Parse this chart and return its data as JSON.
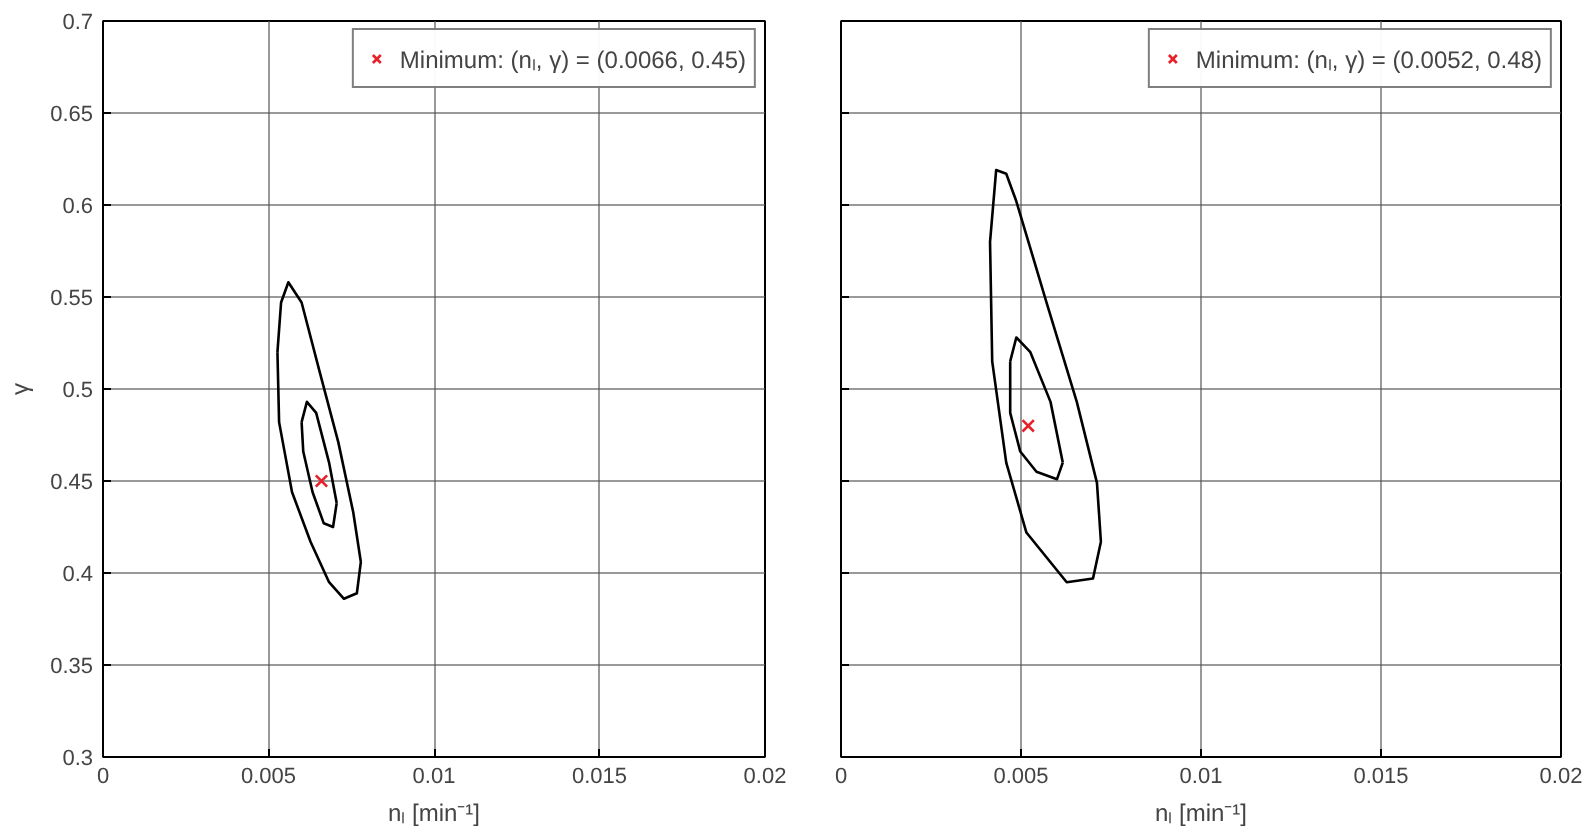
{
  "chart_data": [
    {
      "type": "line",
      "xlabel": "nₗ [min⁻¹]",
      "ylabel": "γ",
      "xlim": [
        0,
        0.02
      ],
      "ylim": [
        0.3,
        0.7
      ],
      "xticks": [
        0,
        0.005,
        0.01,
        0.015,
        0.02
      ],
      "yticks": [
        0.3,
        0.35,
        0.4,
        0.45,
        0.5,
        0.55,
        0.6,
        0.65,
        0.7
      ],
      "grid": true,
      "legend": "top right",
      "series": [
        {
          "color": "#000000",
          "x": [
            0.00527,
            0.00538,
            0.0056,
            0.006,
            0.00655,
            0.00711,
            0.00756,
            0.00779,
            null,
            0.00527,
            0.00532,
            0.00571,
            0.00627,
            0.00683,
            0.00728,
            0.00767,
            0.00779
          ],
          "values": [
            0.52,
            0.547,
            0.558,
            0.547,
            0.509,
            0.471,
            0.433,
            0.406,
            null,
            0.52,
            0.482,
            0.444,
            0.417,
            0.395,
            0.386,
            0.389,
            0.406
          ]
        },
        {
          "color": "#000000",
          "x": [
            0.006,
            0.00616,
            0.00644,
            0.00683,
            0.00706,
            null,
            0.006,
            0.00605,
            0.00633,
            0.00667,
            0.00695,
            0.00706
          ],
          "values": [
            0.482,
            0.493,
            0.487,
            0.46,
            0.438,
            null,
            0.482,
            0.466,
            0.444,
            0.427,
            0.425,
            0.438
          ]
        },
        {
          "type": "scatter",
          "name": "Minimum: (nₗ, γ) = (0.0066, 0.45)",
          "color": "#e8202a",
          "marker": "cross",
          "x": [
            0.0066
          ],
          "values": [
            0.45
          ]
        }
      ]
    },
    {
      "type": "line",
      "xlabel": "nₗ [min⁻¹]",
      "xlim": [
        0,
        0.02
      ],
      "ylim": [
        0.3,
        0.7
      ],
      "xticks": [
        0,
        0.005,
        0.01,
        0.015,
        0.02
      ],
      "yticks": [
        0.3,
        0.35,
        0.4,
        0.45,
        0.5,
        0.55,
        0.6,
        0.65,
        0.7
      ],
      "grid": true,
      "legend": "top right",
      "tick_labels": "x",
      "series": [
        {
          "color": "#000000",
          "x": [
            0.00414,
            0.00431,
            0.00459,
            0.00487,
            0.00571,
            0.00655,
            0.00711,
            0.00722,
            null,
            0.00414,
            0.0042,
            0.00459,
            0.00515,
            0.00627,
            0.007,
            0.00722
          ],
          "values": [
            0.58,
            0.619,
            0.617,
            0.602,
            0.547,
            0.493,
            0.449,
            0.417,
            null,
            0.58,
            0.515,
            0.46,
            0.422,
            0.395,
            0.397,
            0.417
          ]
        },
        {
          "color": "#000000",
          "x": [
            0.0047,
            0.00487,
            0.00526,
            0.00582,
            0.00616,
            null,
            0.0047,
            0.0047,
            0.00498,
            0.00543,
            0.006,
            0.00616
          ],
          "values": [
            0.515,
            0.528,
            0.52,
            0.493,
            0.46,
            null,
            0.515,
            0.487,
            0.466,
            0.455,
            0.451,
            0.46
          ]
        },
        {
          "type": "scatter",
          "name": "Minimum: (nₗ, γ) = (0.0052, 0.48)",
          "color": "#e8202a",
          "marker": "cross",
          "x": [
            0.0052
          ],
          "values": [
            0.48
          ]
        }
      ]
    }
  ]
}
